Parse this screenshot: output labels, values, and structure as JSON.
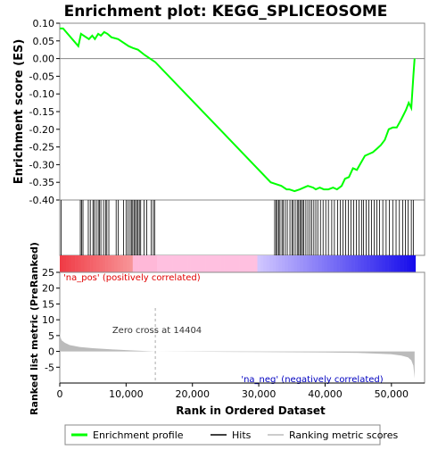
{
  "chart_data": {
    "type": "line",
    "title": "Enrichment plot: KEGG_SPLICEOSOME",
    "top_panel": {
      "ylabel": "Enrichment score (ES)",
      "ylim": [
        -0.4,
        0.1
      ],
      "yticks": [
        "0.10",
        "0.05",
        "0.00",
        "-0.05",
        "-0.10",
        "-0.15",
        "-0.20",
        "-0.25",
        "-0.30",
        "-0.35",
        "-0.40"
      ],
      "ytick_values": [
        0.1,
        0.05,
        0.0,
        -0.05,
        -0.1,
        -0.15,
        -0.2,
        -0.25,
        -0.3,
        -0.35,
        -0.4
      ],
      "line_color": "#00ff00",
      "es_profile": {
        "x": [
          0,
          500,
          2800,
          3200,
          4400,
          4900,
          5300,
          5800,
          6200,
          6700,
          7200,
          7800,
          8800,
          10400,
          11000,
          11800,
          12800,
          13600,
          14400,
          29500,
          31800,
          32600,
          33400,
          34200,
          34600,
          35400,
          36200,
          36800,
          37400,
          38200,
          38600,
          39200,
          39800,
          40500,
          41200,
          41800,
          42500,
          43000,
          43600,
          44200,
          44800,
          45400,
          46000,
          46600,
          47200,
          47800,
          48400,
          49000,
          49600,
          50200,
          50800,
          51400,
          51800,
          52200,
          52600,
          53000,
          53300,
          53500
        ],
        "y": [
          0.085,
          0.085,
          0.035,
          0.07,
          0.055,
          0.065,
          0.055,
          0.07,
          0.065,
          0.075,
          0.07,
          0.06,
          0.055,
          0.035,
          0.03,
          0.025,
          0.01,
          0.0,
          -0.01,
          -0.305,
          -0.35,
          -0.355,
          -0.36,
          -0.37,
          -0.37,
          -0.375,
          -0.37,
          -0.365,
          -0.36,
          -0.365,
          -0.37,
          -0.365,
          -0.37,
          -0.37,
          -0.365,
          -0.37,
          -0.36,
          -0.34,
          -0.335,
          -0.31,
          -0.315,
          -0.295,
          -0.275,
          -0.27,
          -0.265,
          -0.255,
          -0.245,
          -0.23,
          -0.2,
          -0.195,
          -0.195,
          -0.175,
          -0.16,
          -0.145,
          -0.125,
          -0.14,
          -0.05,
          0.0
        ]
      }
    },
    "hits_panel": {
      "hit_color": "#000000",
      "hits": [
        200,
        3100,
        3300,
        3500,
        4300,
        4600,
        5000,
        5200,
        5500,
        5800,
        6000,
        6200,
        6600,
        6900,
        7100,
        7400,
        8500,
        8800,
        9600,
        10000,
        10300,
        10600,
        10800,
        11000,
        11200,
        11400,
        11600,
        11800,
        12000,
        12200,
        12700,
        13100,
        13800,
        14100,
        14300,
        32400,
        32600,
        32800,
        33000,
        33200,
        33500,
        33700,
        34000,
        34300,
        34700,
        35000,
        35200,
        35500,
        35800,
        36000,
        36200,
        36400,
        36600,
        36800,
        37100,
        37400,
        37700,
        38000,
        38300,
        38600,
        38900,
        39300,
        39700,
        40100,
        40500,
        41000,
        41400,
        41900,
        42300,
        42700,
        43100,
        43500,
        43900,
        44300,
        44700,
        45100,
        45500,
        45800,
        46200,
        46600,
        47000,
        47400,
        47800,
        48200,
        48700,
        49200,
        49700,
        50200,
        50700,
        51200,
        51700,
        52100,
        52500,
        53000,
        53300
      ]
    },
    "metric_panel": {
      "ylabel": "Ranked list metric (PreRanked)",
      "ylim": [
        -10,
        25
      ],
      "yticks": [
        "25",
        "20",
        "15",
        "10",
        "5",
        "0",
        "-5"
      ],
      "ytick_values": [
        25,
        20,
        15,
        10,
        5,
        0,
        -5
      ],
      "pos_label": "'na_pos' (positively correlated)",
      "neg_label": "'na_neg' (negatively correlated)",
      "zero_cross_label": "Zero cross at 14404",
      "zero_cross": 14404,
      "metric": {
        "x": [
          0,
          100,
          300,
          800,
          1500,
          3000,
          5000,
          8000,
          11000,
          14404,
          20000,
          30000,
          40000,
          45000,
          48000,
          50000,
          51500,
          52500,
          53000,
          53300,
          53500
        ],
        "y": [
          6.5,
          4.5,
          3.5,
          2.7,
          2.0,
          1.4,
          1.0,
          0.6,
          0.3,
          0.0,
          -0.1,
          -0.2,
          -0.35,
          -0.5,
          -0.7,
          -0.9,
          -1.3,
          -1.9,
          -2.8,
          -4.5,
          -8.5
        ]
      },
      "fill_color": "#bbbbbb",
      "text_pos_color": "#e00000",
      "text_neg_color": "#0000c0"
    },
    "xaxis": {
      "label": "Rank in Ordered Dataset",
      "xlim": [
        0,
        55000
      ],
      "xticks": [
        "0",
        "10,000",
        "20,000",
        "30,000",
        "40,000",
        "50,000"
      ],
      "xtick_values": [
        0,
        10000,
        20000,
        30000,
        40000,
        50000
      ]
    },
    "legend": {
      "placement": "bottom",
      "items": [
        {
          "label": "Enrichment profile",
          "color": "#00ff00",
          "name": "legend-enrichment-profile"
        },
        {
          "label": "Hits",
          "color": "#000000",
          "name": "legend-hits"
        },
        {
          "label": "Ranking metric scores",
          "color": "#bbbbbb",
          "name": "legend-ranking-metric"
        }
      ]
    },
    "grid": false
  }
}
